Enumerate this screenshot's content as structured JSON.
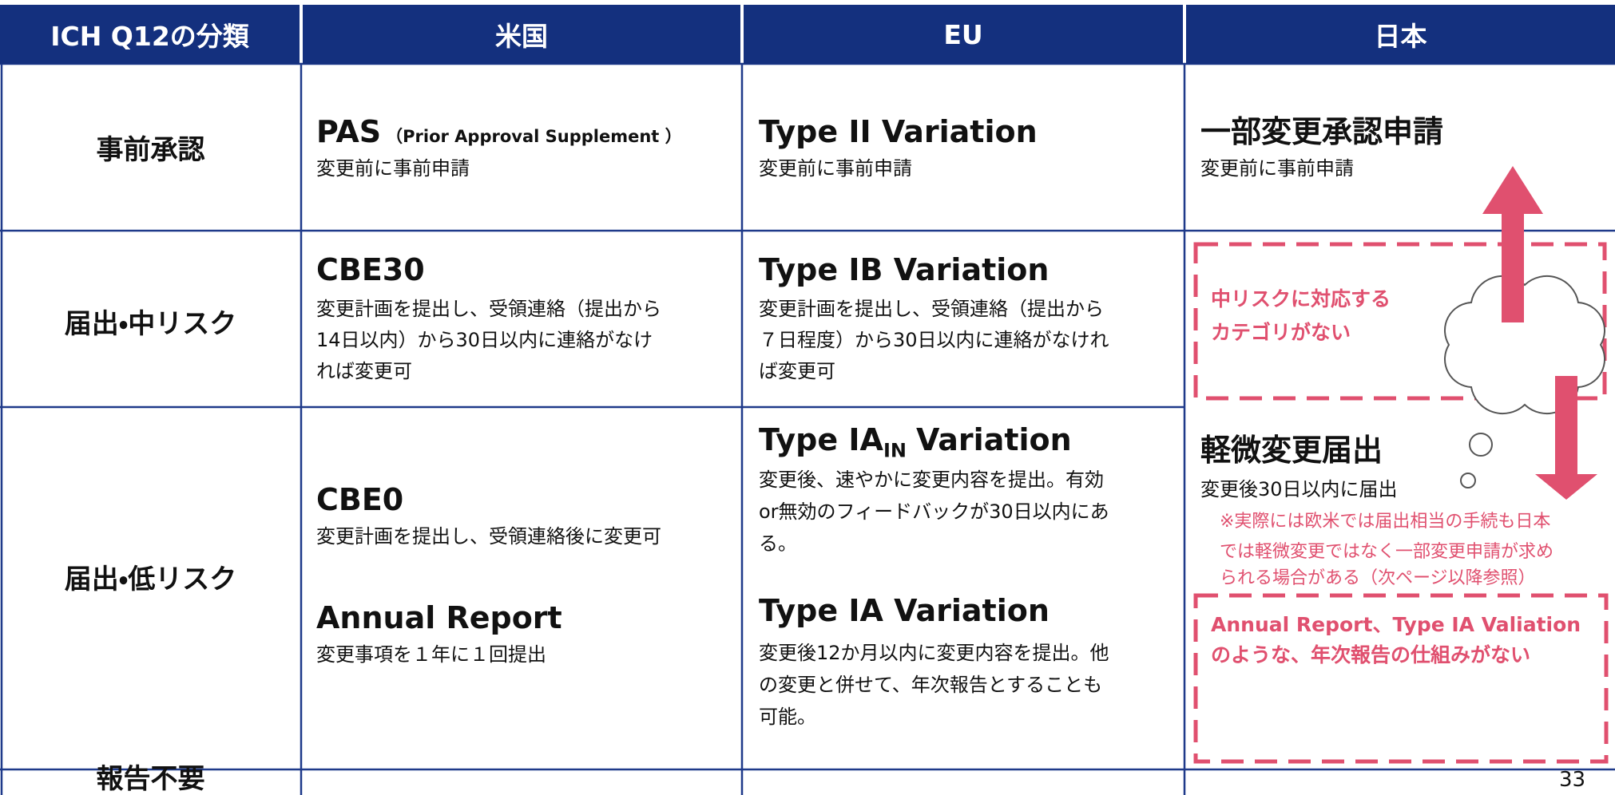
{
  "header": [
    "ICH Q12の分類",
    "米国",
    "EU",
    "日本"
  ],
  "rows": [
    {
      "label": "事前承認",
      "us": {
        "title": "PAS",
        "title_note": "（Prior Approval Supplement ）",
        "desc": [
          "変更前に事前申請"
        ]
      },
      "eu": {
        "title": "Type II Variation",
        "desc": [
          "変更前に事前申請"
        ]
      },
      "jp": {
        "title": "一部変更承認申請",
        "desc": [
          "変更前に事前申請"
        ]
      }
    },
    {
      "label": "届出・中リスク",
      "us": {
        "title": "CBE30",
        "desc": [
          "変更計画を提出し、受領連絡（提出から",
          "14日以内）から30日以内に連絡がなけ",
          "れば変更可"
        ]
      },
      "eu": {
        "title": "Type IB Variation",
        "desc": [
          "変更計画を提出し、受領連絡（提出から",
          "７日程度）から30日以内に連絡がなけれ",
          "ば変更可"
        ]
      }
    },
    {
      "label": "届出・低リスク",
      "us": [
        {
          "title": "CBE0",
          "desc": [
            "変更計画を提出し、受領連絡後に変更可"
          ]
        },
        {
          "title": "Annual Report",
          "desc": [
            "変更事項を１年に１回提出"
          ]
        }
      ],
      "eu": [
        {
          "title": "Type IA",
          "title_sub": "IN",
          "title_rest": "Variation",
          "desc": [
            "変更後、速やかに変更内容を提出。有効",
            "or無効のフィードバックが30日以内にあ",
            "る。"
          ]
        },
        {
          "title": "Type IA Variation",
          "desc": [
            "変更後12か月以内に変更内容を提出。他",
            "の変更と併せて、年次報告とすることも",
            "可能。"
          ]
        }
      ],
      "jp": {
        "title": "軽微変更届出",
        "desc": [
          "変更後30日以内に届出"
        ]
      }
    },
    {
      "label": "報告不要"
    }
  ],
  "notes": {
    "mid_risk": [
      "中リスクに対応する",
      "カテゴリがない"
    ],
    "caveat": [
      "※実際には欧米では届出相当の手続も日本",
      "では軽微変更ではなく一部変更申請が求め",
      "られる場合がある（次ページ以降参照）"
    ],
    "annual": [
      "Annual Report、Type IA Valiation",
      "のような、年次報告の仕組みがない"
    ]
  },
  "page_number": "33"
}
